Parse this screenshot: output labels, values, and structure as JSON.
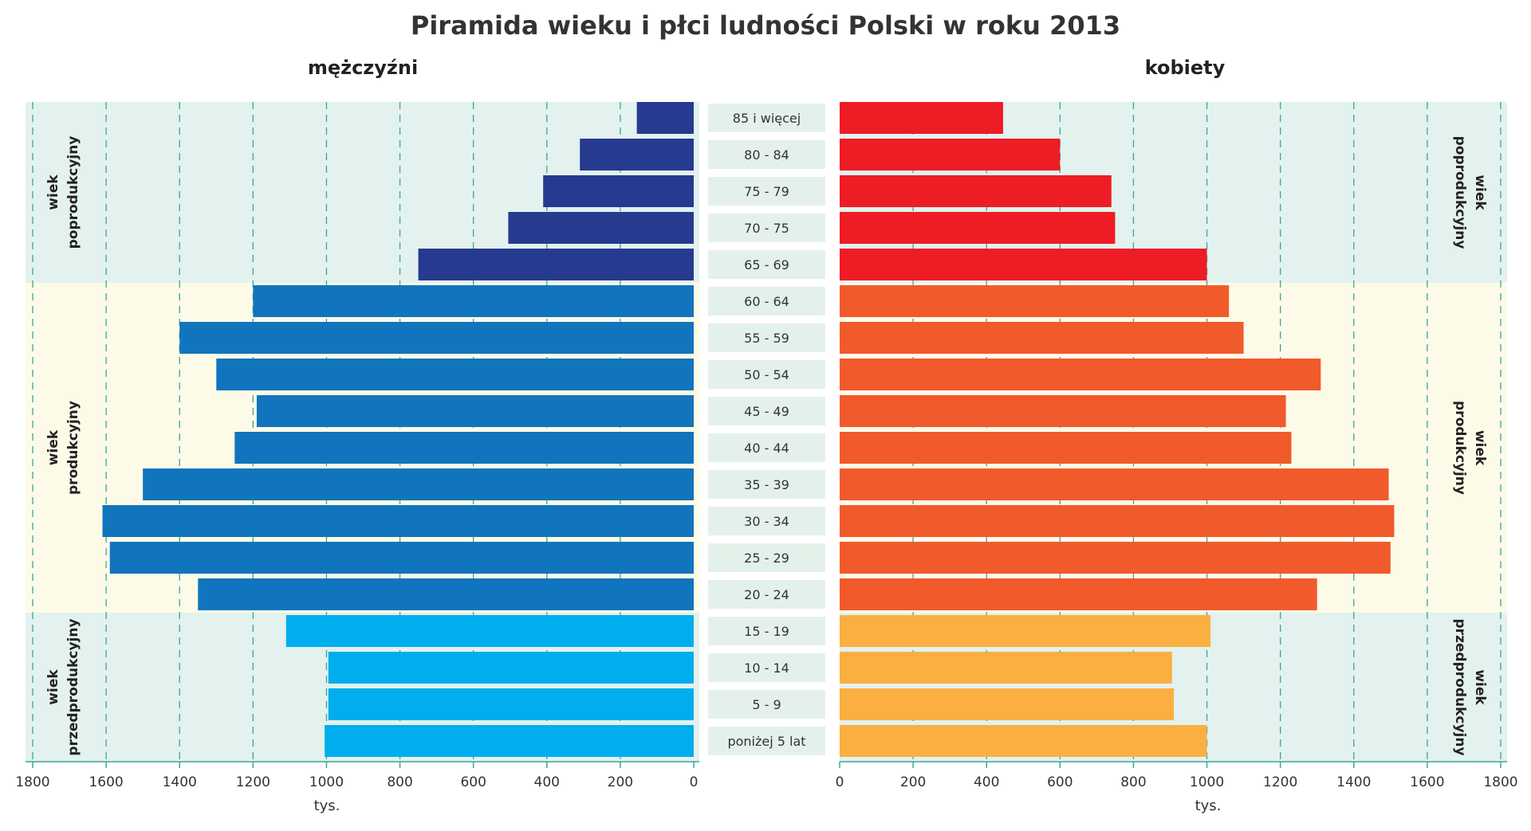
{
  "chart_data": {
    "type": "bar",
    "title": "Piramida wieku i płci ludności Polski w roku 2013",
    "categories": [
      "85 i więcej",
      "80 - 84",
      "75 - 79",
      "70 - 75",
      "65 - 69",
      "60 - 64",
      "55 - 59",
      "50 - 54",
      "45 - 49",
      "40 - 44",
      "35 - 39",
      "30 - 34",
      "25 - 29",
      "20 - 24",
      "15 - 19",
      "10 - 14",
      "5 - 9",
      "poniżej 5 lat"
    ],
    "series": [
      {
        "name": "mężczyźni",
        "values": [
          155,
          310,
          410,
          505,
          750,
          1200,
          1400,
          1300,
          1190,
          1250,
          1500,
          1610,
          1590,
          1350,
          1110,
          995,
          995,
          1005
        ]
      },
      {
        "name": "kobiety",
        "values": [
          445,
          600,
          740,
          750,
          1000,
          1060,
          1100,
          1310,
          1215,
          1230,
          1495,
          1510,
          1500,
          1300,
          1010,
          905,
          910,
          1000
        ]
      }
    ],
    "series_colors": {
      "mężczyźni": {
        "wiek poprodukcyjny": "#263a90",
        "wiek produkcyjny": "#1075bd",
        "wiek przedprodukcyjny": "#01aeed"
      },
      "kobiety": {
        "wiek poprodukcyjny": "#ee1c25",
        "wiek produkcyjny": "#f15a2b",
        "wiek przedprodukcyjny": "#fbaf41"
      }
    },
    "groups": [
      {
        "label": "wiek poprodukcyjny",
        "categories": [
          "85 i więcej",
          "80 - 84",
          "75 - 79",
          "70 - 75",
          "65 - 69"
        ],
        "background": "#e3f2ee"
      },
      {
        "label": "wiek produkcyjny",
        "categories": [
          "60 - 64",
          "55 - 59",
          "50 - 54",
          "45 - 49",
          "40 - 44",
          "35 - 39",
          "30 - 34",
          "25 - 29",
          "20 - 24"
        ],
        "background": "#fdfbe8"
      },
      {
        "label": "wiek przedprodukcyjny",
        "categories": [
          "15 - 19",
          "10 - 14",
          "5 - 9",
          "poniżej 5 lat"
        ],
        "background": "#e3f2ee"
      }
    ],
    "xlabel": "tys.",
    "xlim": [
      0,
      1800
    ],
    "xticks": [
      0,
      200,
      400,
      600,
      800,
      1000,
      1200,
      1400,
      1600,
      1800
    ],
    "grid": true,
    "orientation": "horizontal"
  }
}
